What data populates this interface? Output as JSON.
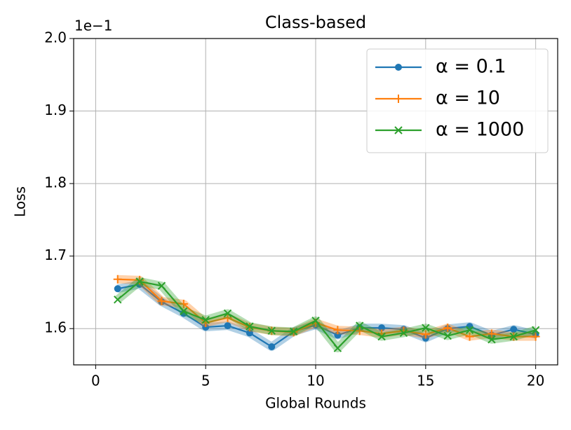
{
  "chart_data": {
    "type": "line",
    "title": "Class-based",
    "xlabel": "Global Rounds",
    "ylabel": "Loss",
    "y_offset_label": "1e−1",
    "x": [
      1,
      2,
      3,
      4,
      5,
      6,
      7,
      8,
      9,
      10,
      11,
      12,
      13,
      14,
      15,
      16,
      17,
      18,
      19,
      20
    ],
    "series": [
      {
        "name": "α = 0.1",
        "color": "#1f77b4",
        "marker": "circle",
        "values": [
          1.655,
          1.661,
          1.637,
          1.621,
          1.602,
          1.604,
          1.594,
          1.575,
          1.596,
          1.605,
          1.591,
          1.601,
          1.601,
          1.599,
          1.587,
          1.6,
          1.603,
          1.591,
          1.599,
          1.592
        ]
      },
      {
        "name": "α = 10",
        "color": "#ff7f0e",
        "marker": "plus",
        "values": [
          1.668,
          1.667,
          1.638,
          1.634,
          1.608,
          1.615,
          1.602,
          1.597,
          1.595,
          1.608,
          1.598,
          1.597,
          1.593,
          1.597,
          1.592,
          1.601,
          1.589,
          1.593,
          1.589,
          1.589
        ]
      },
      {
        "name": "α = 1000",
        "color": "#2ca02c",
        "marker": "x",
        "values": [
          1.64,
          1.665,
          1.659,
          1.624,
          1.612,
          1.621,
          1.603,
          1.597,
          1.596,
          1.611,
          1.573,
          1.604,
          1.589,
          1.594,
          1.601,
          1.59,
          1.598,
          1.585,
          1.589,
          1.598
        ]
      }
    ],
    "xlim": [
      -1,
      21
    ],
    "xticks": [
      0,
      5,
      10,
      15,
      20
    ],
    "ylim": [
      1.55,
      2.0
    ],
    "yticks": [
      1.6,
      1.7,
      1.8,
      1.9,
      {
        "value": 2.0,
        "label": "2.0"
      }
    ],
    "grid": true,
    "legend": "upper right"
  }
}
